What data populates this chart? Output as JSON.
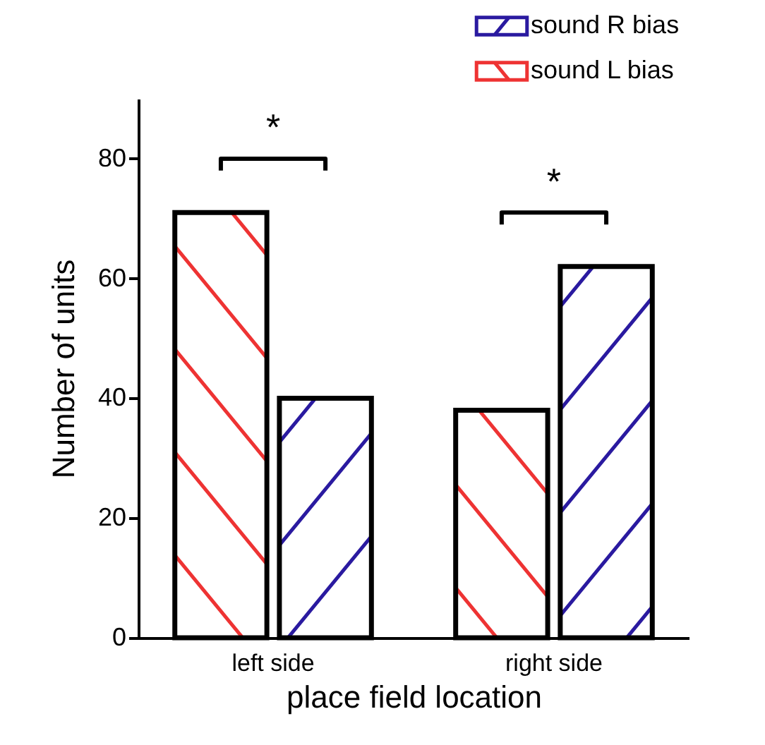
{
  "chart_data": {
    "type": "bar",
    "xlabel": "place field location",
    "ylabel": "Number of units",
    "categories": [
      "left side",
      "right side"
    ],
    "series": [
      {
        "name": "sound L bias",
        "color": "#ee3333",
        "values": [
          71,
          38
        ]
      },
      {
        "name": "sound R bias",
        "color": "#2a1aa0",
        "values": [
          40,
          62
        ]
      }
    ],
    "ylim": [
      0,
      90
    ],
    "yticks": [
      0,
      20,
      40,
      60,
      80
    ],
    "grid": false,
    "legend": "top right",
    "annotations": [
      "*",
      "*"
    ]
  }
}
